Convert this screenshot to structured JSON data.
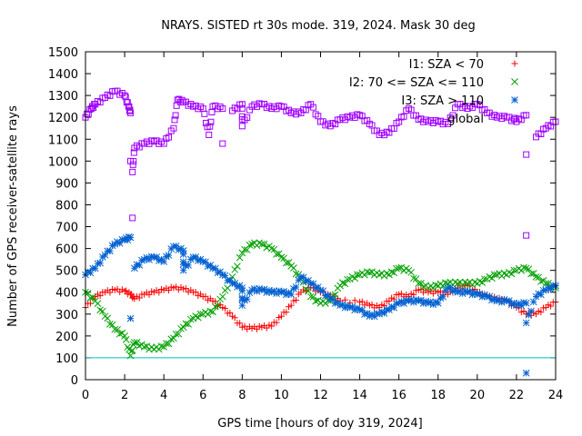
{
  "chart_data": {
    "type": "scatter",
    "title": "NRAYS. SISTED rt 30s mode. 319, 2024. Mask 30 deg",
    "xlabel": "GPS time [hours of doy 319, 2024]",
    "ylabel": "Number of GPS receiver-satellite rays",
    "xlim": [
      0,
      24
    ],
    "ylim": [
      0,
      1500
    ],
    "xticks": [
      0,
      2,
      4,
      6,
      8,
      10,
      12,
      14,
      16,
      18,
      20,
      22,
      24
    ],
    "yticks": [
      0,
      100,
      200,
      300,
      400,
      500,
      600,
      700,
      800,
      900,
      1000,
      1100,
      1200,
      1300,
      1400,
      1500
    ],
    "legend_position": "top-right",
    "reference_line": {
      "y": 100,
      "color": "#00c0c0"
    },
    "series": [
      {
        "name": "I1: SZA < 70",
        "marker": "plus",
        "color": "#ff0000",
        "points": [
          [
            0,
            330
          ],
          [
            0.5,
            380
          ],
          [
            1,
            400
          ],
          [
            1.5,
            410
          ],
          [
            2,
            405
          ],
          [
            2.3,
            390
          ],
          [
            2.5,
            370
          ],
          [
            3,
            390
          ],
          [
            3.5,
            400
          ],
          [
            4,
            410
          ],
          [
            4.5,
            420
          ],
          [
            5,
            415
          ],
          [
            5.5,
            400
          ],
          [
            6,
            380
          ],
          [
            6.5,
            360
          ],
          [
            7,
            330
          ],
          [
            7.5,
            290
          ],
          [
            8,
            240
          ],
          [
            8.5,
            235
          ],
          [
            9,
            240
          ],
          [
            9.5,
            245
          ],
          [
            10,
            290
          ],
          [
            10.5,
            340
          ],
          [
            11,
            400
          ],
          [
            11.5,
            420
          ],
          [
            12,
            400
          ],
          [
            12.5,
            380
          ],
          [
            13,
            360
          ],
          [
            14,
            355
          ],
          [
            14.5,
            340
          ],
          [
            15,
            330
          ],
          [
            15.5,
            360
          ],
          [
            16,
            390
          ],
          [
            16.5,
            380
          ],
          [
            17,
            410
          ],
          [
            17.5,
            400
          ],
          [
            18,
            400
          ],
          [
            18.5,
            390
          ],
          [
            19,
            420
          ],
          [
            19.5,
            430
          ],
          [
            20,
            400
          ],
          [
            20.5,
            380
          ],
          [
            21,
            370
          ],
          [
            21.5,
            360
          ],
          [
            22,
            330
          ],
          [
            22.5,
            300
          ],
          [
            23,
            300
          ],
          [
            23.5,
            330
          ],
          [
            24,
            355
          ]
        ]
      },
      {
        "name": "I2: 70 <= SZA <= 110",
        "marker": "cross",
        "color": "#00a000",
        "points": [
          [
            0,
            400
          ],
          [
            0.5,
            360
          ],
          [
            1,
            290
          ],
          [
            1.5,
            230
          ],
          [
            2,
            200
          ],
          [
            2.3,
            110
          ],
          [
            2.5,
            170
          ],
          [
            3,
            150
          ],
          [
            3.5,
            140
          ],
          [
            4,
            150
          ],
          [
            4.5,
            190
          ],
          [
            5,
            240
          ],
          [
            5.5,
            280
          ],
          [
            6,
            300
          ],
          [
            6.5,
            310
          ],
          [
            7,
            380
          ],
          [
            7.5,
            470
          ],
          [
            8,
            580
          ],
          [
            8.5,
            620
          ],
          [
            9,
            620
          ],
          [
            9.5,
            600
          ],
          [
            10,
            560
          ],
          [
            10.5,
            520
          ],
          [
            11,
            460
          ],
          [
            11.5,
            380
          ],
          [
            12,
            350
          ],
          [
            12.5,
            360
          ],
          [
            13,
            430
          ],
          [
            13.5,
            460
          ],
          [
            14,
            480
          ],
          [
            14.5,
            490
          ],
          [
            15,
            480
          ],
          [
            15.5,
            480
          ],
          [
            16,
            510
          ],
          [
            16.5,
            500
          ],
          [
            17,
            440
          ],
          [
            17.5,
            420
          ],
          [
            18,
            430
          ],
          [
            18.5,
            440
          ],
          [
            19,
            440
          ],
          [
            19.5,
            440
          ],
          [
            20,
            440
          ],
          [
            20.5,
            460
          ],
          [
            21,
            480
          ],
          [
            21.5,
            480
          ],
          [
            22,
            500
          ],
          [
            22.5,
            510
          ],
          [
            23,
            470
          ],
          [
            23.5,
            440
          ],
          [
            24,
            420
          ]
        ]
      },
      {
        "name": "I3: SZA > 110",
        "marker": "star",
        "color": "#0060d0",
        "points": [
          [
            0,
            480
          ],
          [
            0.5,
            510
          ],
          [
            1,
            570
          ],
          [
            1.5,
            620
          ],
          [
            2,
            640
          ],
          [
            2.3,
            650
          ],
          [
            2.3,
            280
          ],
          [
            2.5,
            510
          ],
          [
            3,
            550
          ],
          [
            3.5,
            560
          ],
          [
            4,
            540
          ],
          [
            4.5,
            610
          ],
          [
            5,
            590
          ],
          [
            5,
            500
          ],
          [
            5.5,
            560
          ],
          [
            6,
            540
          ],
          [
            6.5,
            510
          ],
          [
            7,
            480
          ],
          [
            7.5,
            440
          ],
          [
            8,
            420
          ],
          [
            8,
            340
          ],
          [
            8.5,
            410
          ],
          [
            9,
            410
          ],
          [
            9.5,
            400
          ],
          [
            10,
            400
          ],
          [
            10.5,
            390
          ],
          [
            11,
            470
          ],
          [
            11.5,
            440
          ],
          [
            12,
            410
          ],
          [
            12.5,
            370
          ],
          [
            13,
            340
          ],
          [
            13.5,
            330
          ],
          [
            14,
            320
          ],
          [
            14.5,
            290
          ],
          [
            15,
            300
          ],
          [
            15.5,
            320
          ],
          [
            16,
            350
          ],
          [
            16.5,
            360
          ],
          [
            17,
            360
          ],
          [
            17.5,
            350
          ],
          [
            18,
            350
          ],
          [
            18.5,
            420
          ],
          [
            19,
            400
          ],
          [
            19.5,
            400
          ],
          [
            20,
            390
          ],
          [
            20.5,
            380
          ],
          [
            21,
            360
          ],
          [
            21.5,
            360
          ],
          [
            22,
            340
          ],
          [
            22.5,
            350
          ],
          [
            22.5,
            30
          ],
          [
            22.5,
            260
          ],
          [
            23,
            380
          ],
          [
            23.5,
            410
          ],
          [
            24,
            430
          ]
        ]
      },
      {
        "name": "global",
        "marker": "square",
        "color": "#a000ff",
        "points": [
          [
            0,
            1200
          ],
          [
            0.3,
            1240
          ],
          [
            0.5,
            1260
          ],
          [
            1,
            1290
          ],
          [
            1.5,
            1320
          ],
          [
            2,
            1300
          ],
          [
            2.2,
            1250
          ],
          [
            2.3,
            1220
          ],
          [
            2.3,
            1000
          ],
          [
            2.4,
            740
          ],
          [
            2.4,
            950
          ],
          [
            2.5,
            1060
          ],
          [
            3,
            1080
          ],
          [
            3.5,
            1090
          ],
          [
            4,
            1080
          ],
          [
            4.5,
            1150
          ],
          [
            4.7,
            1280
          ],
          [
            5,
            1270
          ],
          [
            5.5,
            1250
          ],
          [
            6,
            1240
          ],
          [
            6.3,
            1120
          ],
          [
            6.5,
            1250
          ],
          [
            7,
            1240
          ],
          [
            7,
            1080
          ],
          [
            7.5,
            1230
          ],
          [
            8,
            1260
          ],
          [
            8,
            1160
          ],
          [
            8.5,
            1250
          ],
          [
            9,
            1260
          ],
          [
            9.5,
            1240
          ],
          [
            10,
            1250
          ],
          [
            10.5,
            1220
          ],
          [
            11,
            1220
          ],
          [
            11.5,
            1260
          ],
          [
            12,
            1180
          ],
          [
            12.5,
            1160
          ],
          [
            13,
            1190
          ],
          [
            13.5,
            1200
          ],
          [
            14,
            1210
          ],
          [
            14.5,
            1170
          ],
          [
            15,
            1120
          ],
          [
            15.5,
            1130
          ],
          [
            16,
            1180
          ],
          [
            16.5,
            1240
          ],
          [
            17,
            1190
          ],
          [
            17.5,
            1180
          ],
          [
            18,
            1180
          ],
          [
            18.5,
            1170
          ],
          [
            19,
            1260
          ],
          [
            19.5,
            1240
          ],
          [
            20,
            1260
          ],
          [
            20.5,
            1220
          ],
          [
            21,
            1200
          ],
          [
            21.5,
            1200
          ],
          [
            22,
            1180
          ],
          [
            22.5,
            1210
          ],
          [
            22.5,
            1030
          ],
          [
            22.5,
            660
          ],
          [
            23,
            1110
          ],
          [
            23.5,
            1150
          ],
          [
            24,
            1180
          ]
        ]
      }
    ]
  }
}
